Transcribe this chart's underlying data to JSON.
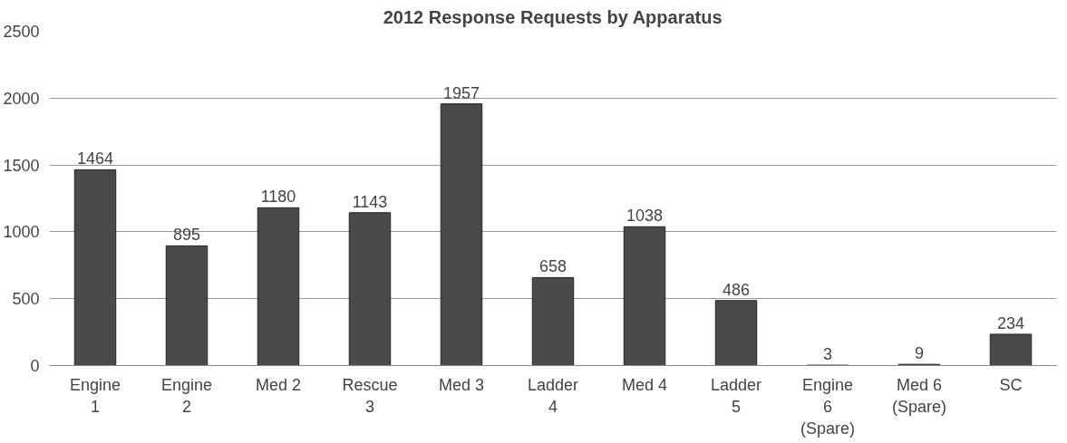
{
  "chart_data": {
    "type": "bar",
    "title": "2012 Response Requests by Apparatus",
    "categories": [
      "Engine 1",
      "Engine 2",
      "Med 2",
      "Rescue 3",
      "Med 3",
      "Ladder 4",
      "Med 4",
      "Ladder 5",
      "Engine 6 (Spare)",
      "Med 6 (Spare)",
      "SC"
    ],
    "values": [
      1464,
      895,
      1180,
      1143,
      1957,
      658,
      1038,
      486,
      3,
      9,
      234
    ],
    "color": "#4a4a4a",
    "ylim": [
      0,
      2500
    ],
    "yticks": [
      0,
      500,
      1000,
      1500,
      2000,
      2500
    ],
    "grid": "y",
    "data_labels": true
  }
}
